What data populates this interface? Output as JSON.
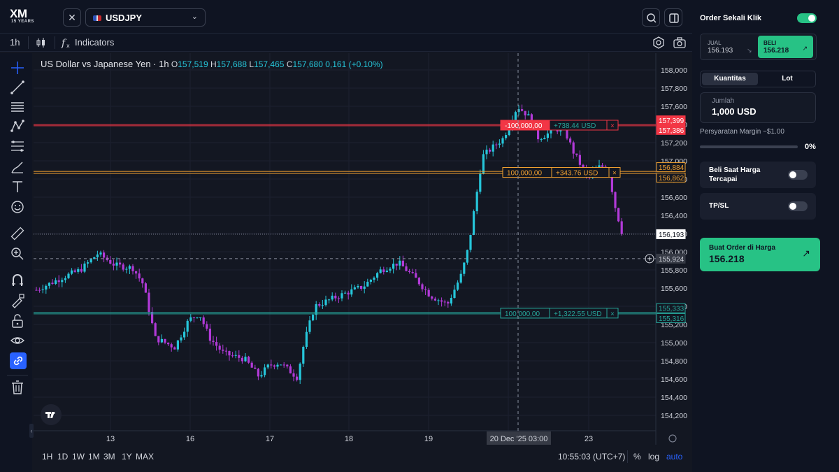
{
  "header": {
    "logo_text": "XM",
    "logo_sub": "15 YEARS",
    "symbol": "USDJPY"
  },
  "toolbar": {
    "timeframe": "1h",
    "indicators_label": "Indicators"
  },
  "legend": {
    "title": "US Dollar vs Japanese Yen · 1h",
    "o_key": "O",
    "o": "157,519",
    "h_key": "H",
    "h": "157,688",
    "l_key": "L",
    "l": "157,465",
    "c_key": "C",
    "c": "157,680",
    "change": "0,161 (+0.10%)"
  },
  "price_axis": {
    "ticks": [
      "158,000",
      "157,800",
      "157,600",
      "157,400",
      "157,200",
      "157,000",
      "156,800",
      "156,600",
      "156,400",
      "156,200",
      "156,000",
      "155,800",
      "155,600",
      "155,400",
      "155,200",
      "155,000",
      "154,800",
      "154,600",
      "154,400",
      "154,200"
    ],
    "labels": {
      "sl_high": "157,399",
      "sl_low": "157,386",
      "entry_high": "156,884",
      "entry_low": "156,862",
      "current": "156,193",
      "crosshair": "155,924",
      "tp_high": "155,333",
      "tp_low": "155,316"
    }
  },
  "time_axis": {
    "labels": [
      "13",
      "16",
      "17",
      "18",
      "19",
      "23"
    ],
    "crosshair_label": "20 Dec '25   03:00"
  },
  "positions": [
    {
      "id": "sell",
      "qty": "-100,000,00",
      "pnl": "+738.44 USD",
      "close": "×",
      "color": "#f23645"
    },
    {
      "id": "buy",
      "qty": "100,000,00",
      "pnl": "+343.76 USD",
      "close": "×",
      "color": "#f0a030"
    },
    {
      "id": "tp",
      "qty": "100,000,00",
      "pnl": "+1,322.55 USD",
      "close": "×",
      "color": "#26a69a"
    }
  ],
  "bottombar": {
    "ranges": [
      "1H",
      "1D",
      "1W",
      "1M",
      "3M",
      "1Y",
      "MAX"
    ],
    "clock": "10:55:03 (UTC+7)",
    "percent": "%",
    "log": "log",
    "auto": "auto"
  },
  "panel": {
    "one_click_label": "Order Sekali Klik",
    "sell_label": "JUAL",
    "sell_price": "156.193",
    "buy_label": "BELI",
    "buy_price": "156.218",
    "tab_quantity": "Kuantitas",
    "tab_lot": "Lot",
    "amount_label": "Jumlah",
    "amount_value": "1,000 USD",
    "margin_label": "Persyaratan Margin ~$1.00",
    "margin_percent": "0%",
    "buy_at_price_label": "Beli Saat Harga Tercapai",
    "tpsl_label": "TP/SL",
    "cta_label": "Buat Order di Harga",
    "cta_price": "156.218"
  },
  "colors": {
    "bull": "#26c6da",
    "bear": "#b23ad8",
    "accent": "#27c285",
    "sell_line": "#f23645",
    "buy_line": "#f0a030",
    "tp_line": "#26a69a"
  }
}
